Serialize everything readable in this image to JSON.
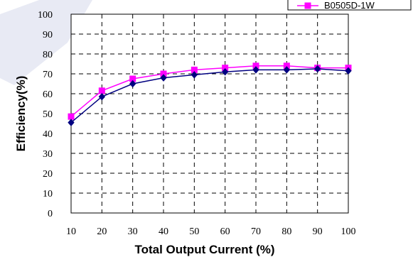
{
  "chart_data": {
    "type": "line",
    "x": [
      10,
      20,
      30,
      40,
      50,
      60,
      70,
      80,
      90,
      100
    ],
    "xlabel": "Total Output Current (%)",
    "ylabel": "Efficiency(%)",
    "xticks": [
      "10",
      "20",
      "30",
      "40",
      "50",
      "60",
      "70",
      "80",
      "90",
      "100"
    ],
    "yticks": [
      "0",
      "10",
      "20",
      "30",
      "40",
      "50",
      "60",
      "70",
      "80",
      "90",
      "100"
    ],
    "ylim": [
      0,
      100
    ],
    "grid": true,
    "legend_position": "top-right",
    "series": [
      {
        "name": "",
        "color": "#000080",
        "marker": "diamond",
        "values": [
          45.5,
          58.5,
          65,
          68,
          69.5,
          71,
          72,
          72,
          72.5,
          71.5
        ]
      },
      {
        "name": "B0505D-1W",
        "color": "#ff00ff",
        "marker": "square",
        "values": [
          48.5,
          61.5,
          67.5,
          70,
          72,
          73,
          74,
          74,
          73,
          73
        ]
      }
    ]
  }
}
